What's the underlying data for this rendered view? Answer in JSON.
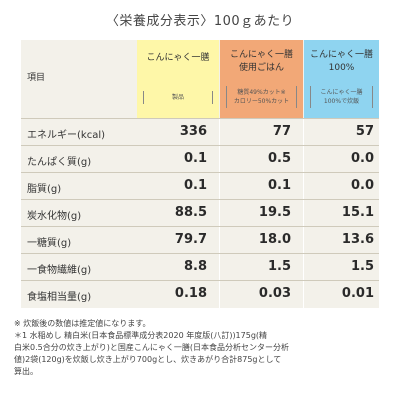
{
  "title": "〈栄養成分表示〉100ｇあたり",
  "row_header": "項目",
  "columns": [
    {
      "name": "こんにゃく一膳",
      "sub": "製品"
    },
    {
      "name_line1": "こんにゃく一膳",
      "name_line2": "使用ごはん",
      "sub_line1": "糖質49%カット※",
      "sub_line2": "カロリー50%カット"
    },
    {
      "name_line1": "こんにゃく一膳",
      "name_line2": "100%",
      "sub_line1": "こんにゃく一膳",
      "sub_line2": "100%で炊飯"
    }
  ],
  "rows": [
    {
      "label": "エネルギー(kcal)",
      "values": [
        "336",
        "77",
        "57"
      ]
    },
    {
      "label": "たんぱく質(g)",
      "values": [
        "0.1",
        "0.5",
        "0.0"
      ]
    },
    {
      "label": "脂質(g)",
      "values": [
        "0.1",
        "0.1",
        "0.0"
      ]
    },
    {
      "label": "炭水化物(g)",
      "values": [
        "88.5",
        "19.5",
        "15.1"
      ]
    },
    {
      "label": "一糖質(g)",
      "values": [
        "79.7",
        "18.0",
        "13.6"
      ]
    },
    {
      "label": "一食物繊維(g)",
      "values": [
        "8.8",
        "1.5",
        "1.5"
      ]
    },
    {
      "label": "食塩相当量(g)",
      "values": [
        "0.18",
        "0.03",
        "0.01"
      ]
    }
  ],
  "notes": [
    "※ 炊飯後の数値は推定値になります。",
    "＊1 水稲めし 精白米(日本食品標準成分表2020 年度版(八訂))175g(精",
    "白米0.5合分の炊き上がり)と国産こんにゃく一膳(日本食品分析センター分析",
    "値)2袋(120g)を炊飯し炊き上がり700gとし、炊きあがり合計875gとして",
    "算出。"
  ]
}
